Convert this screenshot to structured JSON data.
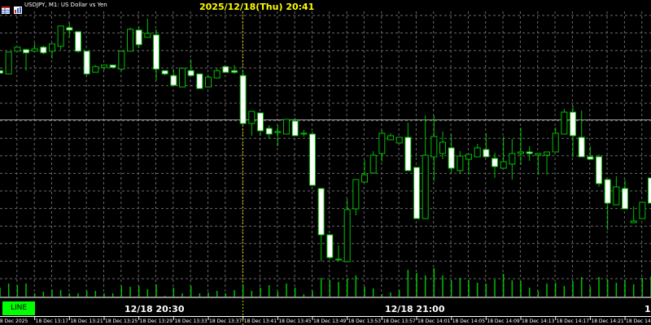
{
  "header": {
    "symbol_info": "USDJPY, M1:  US Dollar vs Yen",
    "datetime_title": "2025/12/18(Thu) 20:41",
    "icons": [
      "grid-table-icon",
      "chart-window-icon"
    ]
  },
  "controls": {
    "line_button": "LINE"
  },
  "time_markers": [
    "12/18 20:30",
    "12/18 21:00",
    "1"
  ],
  "colors": {
    "background": "#000000",
    "bull": "#00c000",
    "bear": "#ffffff",
    "volume": "#00c000",
    "grid": "#6a6a6a",
    "cursor_line": "#c8c800",
    "line_button": "#00ff00",
    "title": "#ffff00"
  },
  "chart_data": {
    "type": "candlestick",
    "timeframe": "M1",
    "x_tick_labels": [
      "18 Dec 2025",
      "18 Dec 13:17",
      "18 Dec 13:21",
      "18 Dec 13:25",
      "18 Dec 13:29",
      "18 Dec 13:33",
      "18 Dec 13:37",
      "18 Dec 13:41",
      "18 Dec 13:45",
      "18 Dec 13:49",
      "18 Dec 13:53",
      "18 Dec 13:57",
      "18 Dec 14:01",
      "18 Dec 14:05",
      "18 Dec 14:09",
      "18 Dec 14:13",
      "18 Dec 14:17",
      "18 Dec 14:21",
      "18 Dec 14:2"
    ],
    "grid": true,
    "ohlc": [
      [
        313,
        313,
        310,
        310
      ],
      [
        309,
        336,
        309,
        336
      ],
      [
        337,
        342,
        337,
        342
      ],
      [
        339,
        339,
        313,
        335
      ],
      [
        337,
        347,
        337,
        340
      ],
      [
        342,
        344,
        333,
        335
      ],
      [
        337,
        346,
        328,
        346
      ],
      [
        343,
        368,
        339,
        368
      ],
      [
        366,
        372,
        354,
        363
      ],
      [
        361,
        361,
        335,
        337
      ],
      [
        337,
        337,
        307,
        309
      ],
      [
        311,
        320,
        311,
        318
      ],
      [
        317,
        320,
        314,
        320
      ],
      [
        320,
        320,
        317,
        317
      ],
      [
        315,
        337,
        313,
        337
      ],
      [
        337,
        366,
        337,
        364
      ],
      [
        363,
        367,
        341,
        345
      ],
      [
        354,
        377,
        354,
        359
      ],
      [
        357,
        364,
        301,
        315
      ],
      [
        313,
        313,
        307,
        309
      ],
      [
        307,
        315,
        295,
        295
      ],
      [
        293,
        316,
        293,
        316
      ],
      [
        313,
        327,
        307,
        307
      ],
      [
        309,
        309,
        291,
        291
      ],
      [
        293,
        307,
        293,
        305
      ],
      [
        304,
        316,
        304,
        313
      ],
      [
        318,
        318,
        311,
        311
      ],
      [
        313,
        320,
        309,
        311
      ],
      [
        307,
        314,
        248,
        248
      ],
      [
        248,
        263,
        233,
        263
      ],
      [
        261,
        261,
        233,
        239
      ],
      [
        242,
        246,
        229,
        235
      ],
      [
        238,
        246,
        220,
        238
      ],
      [
        235,
        253,
        235,
        253
      ],
      [
        251,
        255,
        233,
        233
      ],
      [
        236,
        240,
        232,
        236
      ],
      [
        235,
        238,
        172,
        172
      ],
      [
        168,
        168,
        78,
        111
      ],
      [
        111,
        111,
        81,
        83
      ],
      [
        81,
        98,
        81,
        81
      ],
      [
        78,
        155,
        78,
        142
      ],
      [
        143,
        179,
        135,
        179
      ],
      [
        176,
        203,
        176,
        185
      ],
      [
        187,
        214,
        187,
        209
      ],
      [
        211,
        240,
        201,
        236
      ],
      [
        228,
        236,
        228,
        233
      ],
      [
        224,
        231,
        224,
        231
      ],
      [
        231,
        249,
        190,
        190
      ],
      [
        194,
        194,
        131,
        131
      ],
      [
        131,
        258,
        131,
        209
      ],
      [
        207,
        258,
        177,
        232
      ],
      [
        211,
        238,
        204,
        225
      ],
      [
        218,
        235,
        187,
        193
      ],
      [
        190,
        214,
        186,
        208
      ],
      [
        204,
        210,
        186,
        210
      ],
      [
        207,
        223,
        207,
        218
      ],
      [
        216,
        236,
        207,
        207
      ],
      [
        205,
        212,
        181,
        195
      ],
      [
        193,
        232,
        193,
        201
      ],
      [
        198,
        229,
        179,
        211
      ],
      [
        211,
        243,
        197,
        213
      ],
      [
        213,
        220,
        202,
        211
      ],
      [
        209,
        211,
        185,
        211
      ],
      [
        209,
        213,
        185,
        213
      ],
      [
        213,
        243,
        213,
        236
      ],
      [
        235,
        266,
        235,
        262
      ],
      [
        262,
        270,
        207,
        233
      ],
      [
        231,
        264,
        207,
        207
      ],
      [
        207,
        220,
        204,
        204
      ],
      [
        207,
        210,
        170,
        174
      ],
      [
        179,
        179,
        117,
        150
      ],
      [
        148,
        183,
        148,
        170
      ],
      [
        168,
        179,
        143,
        143
      ],
      [
        126,
        146,
        126,
        128
      ],
      [
        131,
        151,
        131,
        151
      ],
      [
        181,
        181,
        150,
        150
      ]
    ],
    "volume": [
      12,
      17,
      15,
      17,
      5,
      7,
      9,
      9,
      5,
      5,
      8,
      8,
      5,
      5,
      14,
      13,
      14,
      10,
      16,
      2,
      12,
      5,
      14,
      5,
      6,
      8,
      5,
      9,
      16,
      8,
      12,
      15,
      7,
      17,
      12,
      4,
      8,
      24,
      21,
      19,
      23,
      27,
      13,
      11,
      4,
      6,
      9,
      34,
      30,
      27,
      36,
      27,
      21,
      24,
      21,
      18,
      17,
      22,
      29,
      21,
      20,
      12,
      8,
      17,
      18,
      14,
      20,
      25,
      13,
      25,
      22,
      18,
      21,
      16,
      24,
      26
    ]
  }
}
